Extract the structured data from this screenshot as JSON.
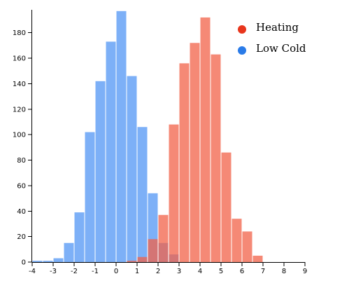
{
  "chart_data": {
    "type": "bar",
    "title": "",
    "xlabel": "",
    "ylabel": "",
    "xlim": [
      -4,
      9
    ],
    "ylim": [
      0,
      198
    ],
    "bin_width": 0.5,
    "x_ticks": [
      "-4",
      "-3",
      "-2",
      "-1",
      "0",
      "1",
      "2",
      "3",
      "4",
      "5",
      "6",
      "7",
      "8",
      "9"
    ],
    "y_ticks": [
      "0",
      "20",
      "40",
      "60",
      "80",
      "100",
      "120",
      "140",
      "160",
      "180"
    ],
    "legend_position": "top-right",
    "series": [
      {
        "name": "Low Cold",
        "color": "#5c9cf5",
        "legend_color": "#2a7be8",
        "opacity": 0.8,
        "bins": [
          {
            "x0": -4.0,
            "x1": -3.5,
            "count": 1
          },
          {
            "x0": -3.5,
            "x1": -3.0,
            "count": 1
          },
          {
            "x0": -3.0,
            "x1": -2.5,
            "count": 3
          },
          {
            "x0": -2.5,
            "x1": -2.0,
            "count": 15
          },
          {
            "x0": -2.0,
            "x1": -1.5,
            "count": 39
          },
          {
            "x0": -1.5,
            "x1": -1.0,
            "count": 102
          },
          {
            "x0": -1.0,
            "x1": -0.5,
            "count": 142
          },
          {
            "x0": -0.5,
            "x1": 0.0,
            "count": 173
          },
          {
            "x0": 0.0,
            "x1": 0.5,
            "count": 197
          },
          {
            "x0": 0.5,
            "x1": 1.0,
            "count": 146
          },
          {
            "x0": 1.0,
            "x1": 1.5,
            "count": 106
          },
          {
            "x0": 1.5,
            "x1": 2.0,
            "count": 54
          },
          {
            "x0": 2.0,
            "x1": 2.5,
            "count": 15
          },
          {
            "x0": 2.5,
            "x1": 3.0,
            "count": 6
          }
        ]
      },
      {
        "name": "Heating",
        "color": "#f26148",
        "legend_color": "#e8351c",
        "opacity": 0.75,
        "bins": [
          {
            "x0": 0.5,
            "x1": 1.0,
            "count": 1
          },
          {
            "x0": 1.0,
            "x1": 1.5,
            "count": 4
          },
          {
            "x0": 1.5,
            "x1": 2.0,
            "count": 18
          },
          {
            "x0": 2.0,
            "x1": 2.5,
            "count": 37
          },
          {
            "x0": 2.5,
            "x1": 3.0,
            "count": 108
          },
          {
            "x0": 3.0,
            "x1": 3.5,
            "count": 156
          },
          {
            "x0": 3.5,
            "x1": 4.0,
            "count": 172
          },
          {
            "x0": 4.0,
            "x1": 4.5,
            "count": 192
          },
          {
            "x0": 4.5,
            "x1": 5.0,
            "count": 163
          },
          {
            "x0": 5.0,
            "x1": 5.5,
            "count": 86
          },
          {
            "x0": 5.5,
            "x1": 6.0,
            "count": 34
          },
          {
            "x0": 6.0,
            "x1": 6.5,
            "count": 24
          },
          {
            "x0": 6.5,
            "x1": 7.0,
            "count": 5
          }
        ]
      }
    ],
    "legend": [
      {
        "name": "Heating",
        "color": "#e8351c"
      },
      {
        "name": "Low Cold",
        "color": "#2a7be8"
      }
    ]
  }
}
